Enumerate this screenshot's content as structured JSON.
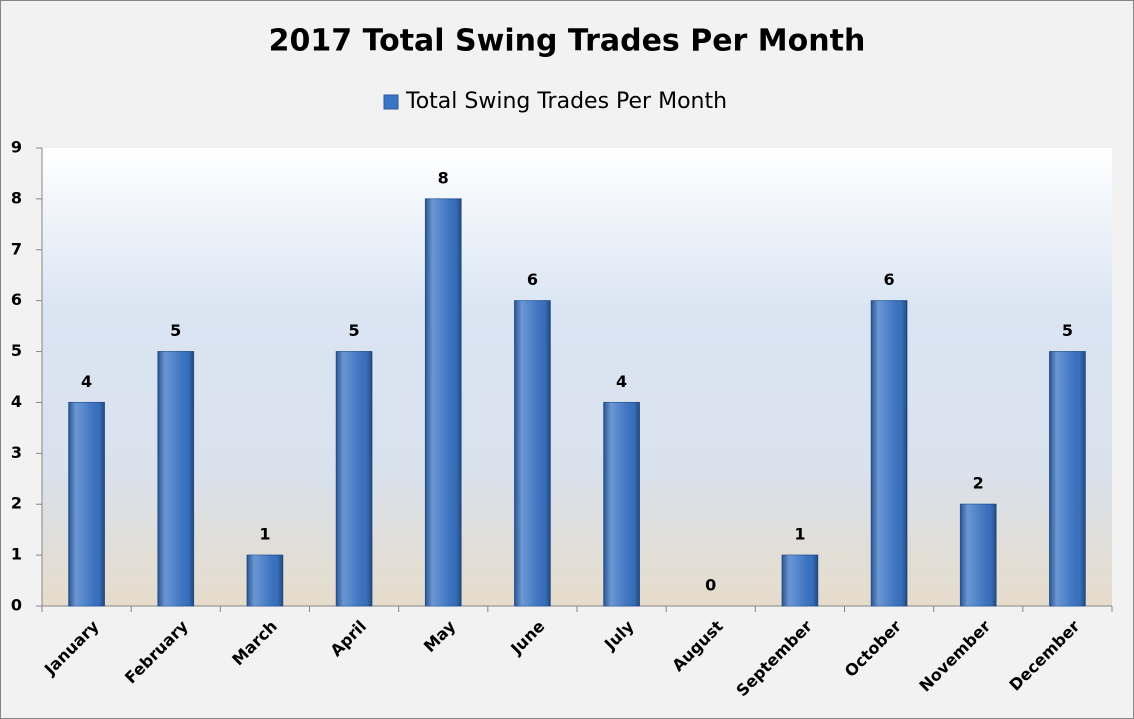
{
  "chart_data": {
    "type": "bar",
    "title": "2017 Total Swing Trades Per Month",
    "categories": [
      "January",
      "February",
      "March",
      "April",
      "May",
      "June",
      "July",
      "August",
      "September",
      "October",
      "November",
      "December"
    ],
    "series": [
      {
        "name": "Total Swing Trades Per Month",
        "color": "#3a74c4",
        "values": [
          4,
          5,
          1,
          5,
          8,
          6,
          4,
          0,
          1,
          6,
          2,
          5
        ]
      }
    ],
    "ylim": [
      0,
      9
    ],
    "yticks": [
      0,
      1,
      2,
      3,
      4,
      5,
      6,
      7,
      8,
      9
    ],
    "grid": false,
    "legend": "top"
  }
}
